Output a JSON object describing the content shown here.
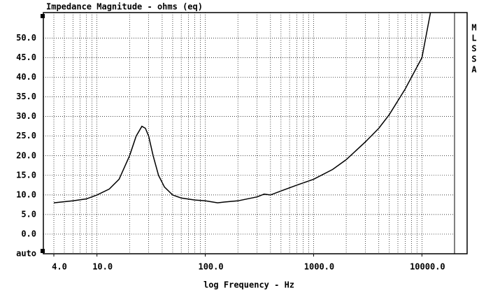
{
  "chart_data": {
    "type": "line",
    "title": "Impedance Magnitude - ohms (eq)",
    "x_label": "log Frequency - Hz",
    "side_letters": [
      "M",
      "L",
      "S",
      "S",
      "A"
    ],
    "x": [
      4,
      6,
      8,
      10,
      13,
      16,
      20,
      23,
      26,
      28,
      30,
      33,
      37,
      42,
      50,
      60,
      80,
      100,
      130,
      150,
      200,
      300,
      350,
      400,
      500,
      700,
      1000,
      1500,
      2000,
      3000,
      4000,
      5000,
      7000,
      10000,
      12000
    ],
    "series": [
      {
        "name": "Impedance",
        "color": "#000000",
        "values": [
          8.0,
          8.5,
          9.0,
          10.0,
          11.5,
          14.0,
          20.0,
          25.0,
          27.5,
          27.0,
          25.0,
          20.0,
          15.0,
          12.0,
          10.0,
          9.2,
          8.7,
          8.5,
          8.0,
          8.2,
          8.5,
          9.5,
          10.2,
          10.0,
          11.0,
          12.5,
          14.0,
          16.5,
          19.0,
          23.5,
          27.0,
          30.5,
          37.0,
          45.0,
          56.5
        ]
      }
    ],
    "xlog": true,
    "xlim": [
      3.2,
      20000
    ],
    "ylim": [
      -5,
      56.5
    ],
    "xticks": [
      {
        "value": 4,
        "label": "4.0"
      },
      {
        "value": 10,
        "label": "10.0"
      },
      {
        "value": 100,
        "label": "100.0"
      },
      {
        "value": 1000,
        "label": "1000.0"
      },
      {
        "value": 10000,
        "label": "10000.0"
      }
    ],
    "yticks": [
      {
        "value": 50,
        "label": "50.0"
      },
      {
        "value": 45,
        "label": "45.0"
      },
      {
        "value": 40,
        "label": "40.0"
      },
      {
        "value": 35,
        "label": "35.0"
      },
      {
        "value": 30,
        "label": "30.0"
      },
      {
        "value": 25,
        "label": "25.0"
      },
      {
        "value": 20,
        "label": "20.0"
      },
      {
        "value": 15,
        "label": "15.0"
      },
      {
        "value": 10,
        "label": "10.0"
      },
      {
        "value": 5,
        "label": "5.0"
      },
      {
        "value": 0,
        "label": "0.0"
      },
      {
        "value": -5,
        "label": "auto"
      }
    ],
    "grid": true
  }
}
